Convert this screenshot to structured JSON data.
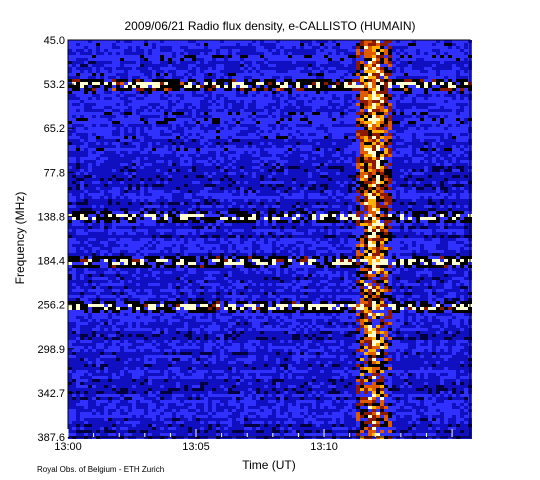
{
  "chart_data": {
    "type": "heatmap",
    "title": "2009/06/21  Radio flux density, e-CALLISTO (HUMAIN)",
    "xlabel": "Time (UT)",
    "ylabel": "Frequency (MHz)",
    "x_ticks": [
      "13:00",
      "13:05",
      "13:10"
    ],
    "y_ticks": [
      "45.0",
      "53.2",
      "65.2",
      "77.8",
      "138.8",
      "184.4",
      "256.2",
      "298.9",
      "342.7",
      "387.6"
    ],
    "x_range_minutes": [
      0,
      15.7
    ],
    "colormap": [
      "#000040",
      "#1010c0",
      "#3030ff",
      "#000000",
      "#8b1a00",
      "#e05a00",
      "#ffb000",
      "#ffffd0"
    ],
    "features": {
      "burst_time_minutes": [
        11.1,
        12.6
      ],
      "interference_bands": [
        "53.2",
        "138.8",
        "184.4",
        "256.2"
      ]
    }
  },
  "footer": {
    "credit": "Royal Obs. of Belgium - ETH Zurich"
  }
}
